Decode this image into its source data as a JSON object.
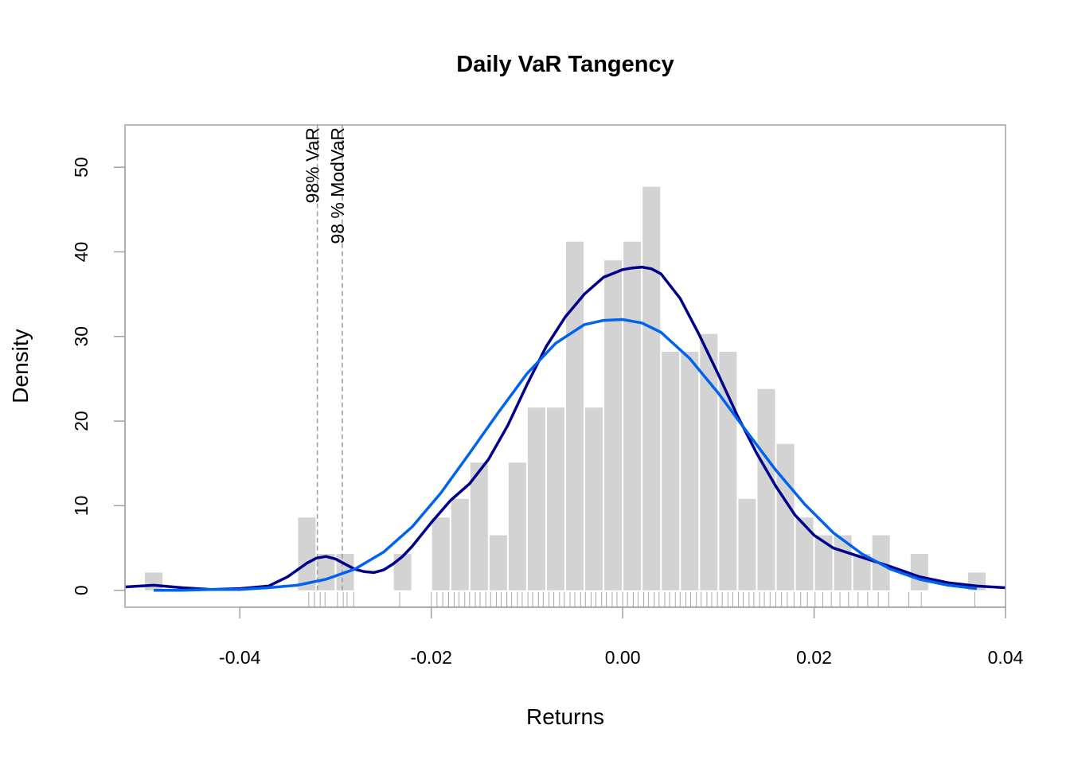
{
  "chart_data": {
    "type": "bar",
    "title": "Daily VaR Tangency",
    "xlabel": "Returns",
    "ylabel": "Density",
    "xlim": [
      -0.052,
      0.04
    ],
    "ylim": [
      -2,
      55
    ],
    "x_ticks": [
      -0.04,
      -0.02,
      0.0,
      0.02,
      0.04
    ],
    "x_tick_labels": [
      "-0.04",
      "-0.02",
      "0.00",
      "0.02",
      "0.04"
    ],
    "y_ticks": [
      0,
      10,
      20,
      30,
      40,
      50
    ],
    "y_tick_labels": [
      "0",
      "10",
      "20",
      "30",
      "40",
      "50"
    ],
    "bin_width": 0.002,
    "bin_starts": [
      -0.05,
      -0.034,
      -0.032,
      -0.03,
      -0.024,
      -0.02,
      -0.018,
      -0.016,
      -0.014,
      -0.012,
      -0.01,
      -0.008,
      -0.006,
      -0.004,
      -0.002,
      0.0,
      0.002,
      0.004,
      0.006,
      0.008,
      0.01,
      0.012,
      0.014,
      0.016,
      0.018,
      0.02,
      0.022,
      0.024,
      0.026,
      0.03,
      0.036
    ],
    "histogram_density": [
      2.1,
      8.6,
      4.3,
      4.3,
      4.3,
      8.6,
      10.8,
      15.1,
      6.5,
      15.1,
      21.6,
      21.6,
      41.2,
      21.6,
      39.0,
      41.2,
      47.7,
      28.2,
      28.2,
      30.3,
      28.2,
      10.8,
      23.8,
      17.3,
      8.6,
      6.5,
      6.5,
      4.3,
      6.5,
      4.3,
      2.1
    ],
    "bar_color": "#d3d3d3",
    "series": [
      {
        "name": "",
        "type": "line",
        "color": "#00008b",
        "x": [
          -0.052,
          -0.049,
          -0.046,
          -0.043,
          -0.04,
          -0.037,
          -0.035,
          -0.033,
          -0.032,
          -0.031,
          -0.03,
          -0.029,
          -0.028,
          -0.027,
          -0.026,
          -0.025,
          -0.024,
          -0.023,
          -0.022,
          -0.02,
          -0.018,
          -0.016,
          -0.014,
          -0.012,
          -0.01,
          -0.008,
          -0.006,
          -0.004,
          -0.002,
          0.0,
          0.001,
          0.002,
          0.003,
          0.004,
          0.006,
          0.008,
          0.01,
          0.012,
          0.014,
          0.016,
          0.018,
          0.02,
          0.022,
          0.025,
          0.028,
          0.031,
          0.034,
          0.037,
          0.04
        ],
        "y": [
          0.4,
          0.6,
          0.3,
          0.1,
          0.2,
          0.5,
          1.6,
          3.2,
          3.8,
          4.0,
          3.7,
          3.1,
          2.5,
          2.2,
          2.1,
          2.4,
          3.1,
          4.0,
          5.2,
          8.0,
          10.6,
          12.6,
          15.5,
          19.5,
          24.3,
          28.8,
          32.3,
          35.0,
          37.0,
          37.9,
          38.1,
          38.2,
          38.0,
          37.4,
          34.5,
          30.2,
          25.5,
          20.6,
          16.2,
          12.3,
          8.9,
          6.5,
          5.0,
          3.9,
          2.8,
          1.6,
          0.9,
          0.5,
          0.3
        ]
      },
      {
        "name": "",
        "type": "line",
        "color": "#0063ee",
        "x": [
          -0.049,
          -0.046,
          -0.043,
          -0.04,
          -0.037,
          -0.034,
          -0.031,
          -0.028,
          -0.025,
          -0.022,
          -0.019,
          -0.016,
          -0.013,
          -0.01,
          -0.007,
          -0.004,
          -0.002,
          0.0,
          0.002,
          0.004,
          0.007,
          0.01,
          0.013,
          0.016,
          0.019,
          0.022,
          0.025,
          0.028,
          0.031,
          0.034,
          0.037
        ],
        "y": [
          0.0,
          0.0,
          0.1,
          0.1,
          0.3,
          0.6,
          1.3,
          2.5,
          4.5,
          7.5,
          11.5,
          16.2,
          21.0,
          25.6,
          29.2,
          31.4,
          31.9,
          32.0,
          31.6,
          30.5,
          27.4,
          23.3,
          18.7,
          14.2,
          10.2,
          6.8,
          4.3,
          2.5,
          1.3,
          0.6,
          0.2
        ]
      }
    ],
    "vlines": [
      {
        "x": -0.0319,
        "label": "98% VaR",
        "color": "#a0a0a0"
      },
      {
        "x": -0.0293,
        "label": "98 % ModVaR",
        "color": "#a0a0a0"
      }
    ],
    "rug_x": [
      -0.0328,
      -0.0322,
      -0.0316,
      -0.0311,
      -0.0298,
      -0.0292,
      -0.0281,
      -0.0288,
      -0.0233,
      -0.02,
      -0.0194,
      -0.0188,
      -0.0182,
      -0.0176,
      -0.0171,
      -0.0165,
      -0.016,
      -0.0154,
      -0.0149,
      -0.0143,
      -0.0138,
      -0.0132,
      -0.0127,
      -0.0121,
      -0.0116,
      -0.011,
      -0.0105,
      -0.0099,
      -0.0094,
      -0.0088,
      -0.0083,
      -0.0077,
      -0.0072,
      -0.0066,
      -0.0061,
      -0.0055,
      -0.005,
      -0.0044,
      -0.0039,
      -0.0033,
      -0.0028,
      -0.0022,
      -0.0017,
      -0.0011,
      -0.0006,
      0.0,
      0.0005,
      0.0011,
      0.0016,
      0.0022,
      0.0027,
      0.0033,
      0.0038,
      0.0044,
      0.0049,
      0.0055,
      0.006,
      0.0066,
      0.0071,
      0.0077,
      0.0082,
      0.0088,
      0.0093,
      0.0099,
      0.0104,
      0.011,
      0.0115,
      0.0121,
      0.0126,
      0.0132,
      0.0137,
      0.0143,
      0.0148,
      0.0154,
      0.016,
      0.0166,
      0.0172,
      0.0179,
      0.0186,
      0.0193,
      0.0201,
      0.0209,
      0.0218,
      0.0227,
      0.0236,
      0.0246,
      0.0256,
      0.0267,
      0.0278,
      0.0299,
      0.0312,
      0.0368
    ]
  }
}
